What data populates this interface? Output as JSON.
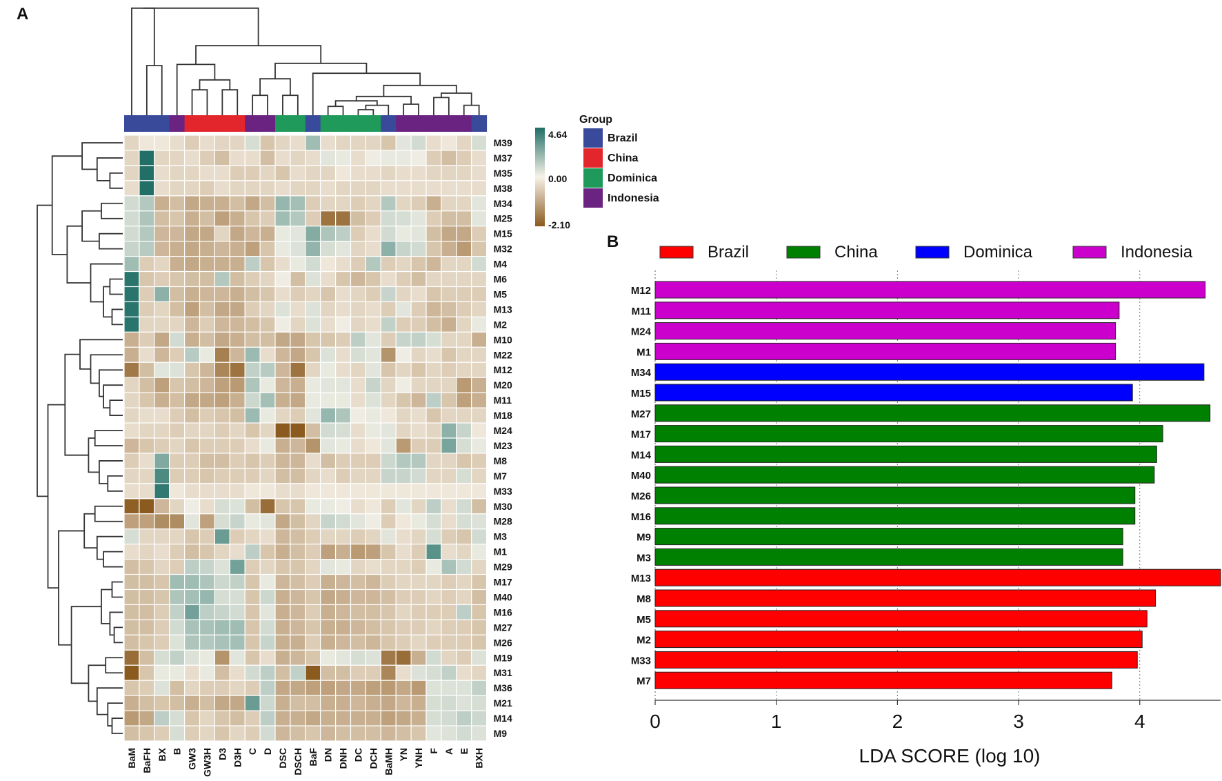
{
  "chart_data": [
    {
      "type": "heatmap",
      "panel_label": "A",
      "columns": [
        "BaM",
        "BaFH",
        "BX",
        "B",
        "GW3",
        "GW3H",
        "D3",
        "D3H",
        "C",
        "D",
        "DSC",
        "DSCH",
        "BaF",
        "DN",
        "DNH",
        "DC",
        "DCH",
        "BaMH",
        "YN",
        "YNH",
        "F",
        "A",
        "E",
        "BXH"
      ],
      "column_groups": [
        "Brazil",
        "Brazil",
        "Brazil",
        "Indonesia",
        "China",
        "China",
        "China",
        "China",
        "Indonesia",
        "Indonesia",
        "Dominica",
        "Dominica",
        "Brazil",
        "Dominica",
        "Dominica",
        "Dominica",
        "Dominica",
        "Brazil",
        "Indonesia",
        "Indonesia",
        "Indonesia",
        "Indonesia",
        "Indonesia",
        "Brazil"
      ],
      "rows": [
        "M39",
        "M37",
        "M35",
        "M38",
        "M34",
        "M25",
        "M15",
        "M32",
        "M4",
        "M6",
        "M5",
        "M13",
        "M2",
        "M10",
        "M22",
        "M12",
        "M20",
        "M11",
        "M18",
        "M24",
        "M23",
        "M8",
        "M7",
        "M33",
        "M30",
        "M28",
        "M3",
        "M1",
        "M29",
        "M17",
        "M40",
        "M16",
        "M27",
        "M26",
        "M19",
        "M31",
        "M36",
        "M21",
        "M14",
        "M9"
      ],
      "colorbar": {
        "max_label": "4.64",
        "mid_label": "0.00",
        "min_label": "-2.10",
        "max": 4.64,
        "mid": 0.0,
        "min": -2.1
      },
      "legend_title": "Group",
      "legend": [
        {
          "name": "Brazil",
          "color": "#3a4a9a"
        },
        {
          "name": "China",
          "color": "#e3262b"
        },
        {
          "name": "Dominica",
          "color": "#1f9a5a"
        },
        {
          "name": "Indonesia",
          "color": "#6a2380"
        }
      ],
      "values": [
        [
          -0.3,
          -0.1,
          -0.1,
          -0.2,
          -0.4,
          -0.2,
          -0.3,
          -0.3,
          0.5,
          -0.5,
          -0.3,
          -0.2,
          1.6,
          -0.2,
          -0.3,
          -0.3,
          -0.3,
          -0.5,
          0.3,
          0.6,
          -0.2,
          -0.1,
          -0.3,
          0.5
        ],
        [
          -0.3,
          4.6,
          -0.3,
          -0.3,
          -0.2,
          -0.4,
          -0.6,
          -0.2,
          -0.2,
          -0.6,
          -0.2,
          -0.3,
          -0.2,
          0.3,
          0.2,
          -0.2,
          0.1,
          0.2,
          0.2,
          0.1,
          -0.4,
          -0.6,
          -0.4,
          -0.2
        ],
        [
          -0.3,
          4.6,
          -0.2,
          -0.3,
          -0.3,
          -0.2,
          -0.2,
          -0.4,
          -0.4,
          -0.3,
          -0.5,
          -0.2,
          -0.3,
          -0.3,
          -0.1,
          -0.2,
          -0.2,
          -0.3,
          -0.2,
          -0.2,
          -0.3,
          -0.3,
          -0.3,
          -0.2
        ],
        [
          -0.2,
          4.6,
          -0.2,
          -0.3,
          -0.3,
          -0.4,
          -0.2,
          -0.3,
          -0.3,
          -0.3,
          -0.2,
          -0.3,
          -0.3,
          -0.2,
          -0.3,
          -0.3,
          -0.3,
          -0.2,
          -0.2,
          -0.2,
          -0.2,
          -0.2,
          -0.2,
          -0.2
        ],
        [
          0.6,
          1.2,
          -0.8,
          -0.6,
          -0.9,
          -0.8,
          -0.8,
          -0.6,
          -0.9,
          -0.6,
          1.8,
          1.5,
          -0.4,
          -0.3,
          -0.3,
          -0.4,
          -0.3,
          1.2,
          -0.3,
          -0.4,
          -0.8,
          -0.3,
          -0.3,
          0.3
        ],
        [
          0.6,
          1.3,
          -0.6,
          -0.5,
          -0.8,
          -0.6,
          -1.0,
          -0.8,
          -0.5,
          -0.4,
          1.6,
          1.2,
          -0.4,
          -1.7,
          -1.7,
          -0.6,
          -0.4,
          0.6,
          0.5,
          0.3,
          -0.4,
          -0.6,
          -0.6,
          0.3
        ],
        [
          0.6,
          1.2,
          -0.7,
          -0.7,
          -0.9,
          -0.9,
          -0.3,
          -0.9,
          -0.7,
          -0.8,
          0.2,
          0.3,
          2.2,
          1.3,
          1.0,
          -0.4,
          -0.2,
          0.6,
          0.2,
          0.3,
          -0.6,
          -0.9,
          -0.9,
          -0.4
        ],
        [
          0.8,
          1.1,
          -0.7,
          -0.8,
          -0.9,
          -0.8,
          -0.7,
          -0.8,
          -1.0,
          -0.5,
          0.2,
          0.4,
          1.9,
          0.5,
          0.3,
          -0.3,
          -0.2,
          2.0,
          0.8,
          0.6,
          -0.5,
          -0.8,
          -1.1,
          -0.5
        ],
        [
          1.6,
          -0.4,
          -0.3,
          -0.8,
          -0.9,
          -0.8,
          -0.8,
          -0.8,
          1.0,
          -0.5,
          -0.2,
          0.2,
          0.6,
          -0.1,
          -0.2,
          -0.4,
          1.2,
          -0.4,
          -0.3,
          -0.5,
          -0.7,
          -0.3,
          -0.3,
          0.6
        ],
        [
          4.4,
          -0.5,
          -0.4,
          -0.5,
          -0.6,
          -0.6,
          1.2,
          -0.6,
          -0.4,
          -0.3,
          0.1,
          -0.6,
          0.4,
          -0.2,
          -0.5,
          -0.7,
          -0.5,
          -0.2,
          -0.4,
          -0.6,
          -0.3,
          -0.3,
          -0.3,
          -0.3
        ],
        [
          4.4,
          -0.4,
          2.0,
          -0.6,
          -0.8,
          -0.7,
          -0.7,
          -0.8,
          -0.6,
          -0.5,
          -0.2,
          -0.4,
          -0.3,
          -0.5,
          -0.2,
          -0.3,
          -0.4,
          0.8,
          -0.3,
          -0.2,
          -0.5,
          -0.4,
          -0.4,
          -0.4
        ],
        [
          4.4,
          -0.4,
          -0.3,
          -0.6,
          -1.0,
          -0.6,
          -0.9,
          -0.9,
          -0.4,
          -0.3,
          0.4,
          -0.2,
          0.4,
          -0.3,
          -0.2,
          -0.3,
          -0.2,
          -0.4,
          0.3,
          -0.4,
          -0.7,
          -0.6,
          -0.4,
          -0.3
        ],
        [
          4.4,
          -0.3,
          -0.3,
          -0.3,
          -0.7,
          -0.4,
          -0.7,
          -0.7,
          -0.6,
          -0.5,
          0.1,
          -0.3,
          0.4,
          -0.2,
          0.1,
          -0.3,
          -0.2,
          0.9,
          -0.4,
          -0.4,
          -0.6,
          -0.8,
          -0.3,
          0.2
        ],
        [
          -0.8,
          -0.4,
          -0.9,
          0.6,
          -0.8,
          -0.6,
          -0.9,
          -0.8,
          -0.6,
          -0.6,
          -0.9,
          -0.9,
          -0.5,
          -0.5,
          -0.4,
          1.0,
          0.3,
          -0.4,
          0.8,
          0.9,
          0.5,
          -0.3,
          -0.3,
          -0.8
        ],
        [
          -0.8,
          -0.2,
          -0.7,
          -0.4,
          1.1,
          0.2,
          -1.5,
          -0.7,
          1.7,
          -0.2,
          -0.7,
          -0.9,
          -0.5,
          0.4,
          -0.2,
          0.5,
          0.3,
          -1.2,
          0.1,
          -0.3,
          -0.2,
          -0.5,
          -0.3,
          -0.3
        ],
        [
          -1.6,
          -0.6,
          0.3,
          0.4,
          -0.5,
          -0.7,
          -1.4,
          -1.7,
          0.9,
          1.1,
          -0.7,
          -1.7,
          -0.3,
          0.2,
          -0.2,
          -0.3,
          0.3,
          -0.5,
          -0.3,
          -0.5,
          -0.3,
          -0.4,
          -0.3,
          -0.3
        ],
        [
          -0.3,
          -0.6,
          -1.0,
          -0.5,
          -0.6,
          -0.7,
          -1.0,
          -1.1,
          1.3,
          0.2,
          -0.7,
          -0.8,
          0.2,
          0.3,
          0.3,
          -0.2,
          0.8,
          -0.3,
          0.1,
          -0.3,
          -0.3,
          -0.3,
          -1.1,
          -0.8
        ],
        [
          -0.3,
          -0.5,
          -0.8,
          -0.6,
          -0.9,
          -0.9,
          -1.0,
          -0.8,
          0.7,
          1.5,
          -0.8,
          -0.9,
          0.2,
          0.2,
          0.2,
          -0.2,
          0.4,
          -0.3,
          -0.5,
          -0.7,
          1.0,
          -0.5,
          -1.0,
          -0.8
        ],
        [
          -0.3,
          -0.2,
          -0.2,
          -0.4,
          -0.6,
          -0.4,
          -0.5,
          -0.6,
          1.7,
          0.2,
          -0.3,
          -0.4,
          0.3,
          1.8,
          1.3,
          0.1,
          0.2,
          -0.1,
          -0.3,
          -0.2,
          -0.5,
          -0.3,
          -0.3,
          -0.3
        ],
        [
          -0.2,
          -0.3,
          -0.3,
          -0.4,
          -0.3,
          -0.3,
          -0.4,
          -0.3,
          -0.5,
          -0.3,
          -2.1,
          -2.1,
          -0.6,
          0.6,
          0.5,
          -0.2,
          0.2,
          0.3,
          -0.3,
          -0.2,
          -0.3,
          2.0,
          0.8,
          -0.1
        ],
        [
          -0.7,
          -0.5,
          -0.4,
          -0.3,
          -0.5,
          -0.4,
          -0.4,
          -0.4,
          -0.2,
          0.2,
          -0.8,
          -0.7,
          -1.2,
          0.3,
          0.2,
          -0.2,
          -0.1,
          0.3,
          -1.1,
          -0.4,
          -0.4,
          2.5,
          0.5,
          0.2
        ],
        [
          -0.4,
          -0.2,
          2.3,
          -0.4,
          -0.4,
          -0.6,
          -0.6,
          -0.4,
          -0.5,
          -0.4,
          -0.7,
          -0.7,
          -0.2,
          -0.6,
          -0.4,
          -0.4,
          -0.4,
          0.7,
          1.2,
          1.2,
          -0.3,
          -0.3,
          -0.5,
          -0.4
        ],
        [
          -0.3,
          -0.3,
          3.5,
          -0.4,
          -0.4,
          -0.5,
          -0.4,
          -0.4,
          -0.4,
          -0.3,
          -0.6,
          -0.6,
          -0.3,
          -0.2,
          -0.4,
          -0.3,
          -0.3,
          0.8,
          0.8,
          0.6,
          -0.3,
          -0.3,
          0.5,
          -0.3
        ],
        [
          -0.2,
          -0.2,
          4.2,
          -0.1,
          -0.2,
          -0.2,
          -0.2,
          -0.2,
          -0.1,
          -0.1,
          -0.2,
          -0.2,
          -0.1,
          -0.1,
          -0.1,
          -0.1,
          -0.1,
          -0.1,
          -0.1,
          -0.1,
          -0.1,
          -0.1,
          -0.1,
          -0.1
        ],
        [
          -2.0,
          -2.1,
          -0.7,
          -0.3,
          0.1,
          -0.2,
          0.5,
          0.4,
          -0.6,
          -1.8,
          -0.5,
          -0.5,
          0.2,
          0.2,
          0.1,
          -0.2,
          -0.1,
          -0.4,
          0.3,
          -0.3,
          1.0,
          -0.2,
          0.6,
          -0.6
        ],
        [
          -1.0,
          -1.0,
          -1.3,
          -1.3,
          0.3,
          -1.0,
          0.5,
          0.8,
          0.2,
          0.3,
          -0.9,
          -0.6,
          -0.3,
          0.8,
          0.6,
          0.3,
          0.1,
          -0.4,
          -0.1,
          0.2,
          0.5,
          -0.2,
          0.5,
          0.4
        ],
        [
          0.5,
          -0.3,
          -0.3,
          -0.3,
          -0.5,
          -0.4,
          2.8,
          -0.4,
          -0.3,
          -0.2,
          -0.7,
          -0.6,
          -0.4,
          -0.3,
          -0.3,
          -0.4,
          -0.3,
          0.3,
          -0.2,
          -0.3,
          0.5,
          -0.4,
          -0.5,
          0.6
        ],
        [
          -0.2,
          -0.3,
          -0.2,
          -0.4,
          -0.6,
          -0.5,
          -0.3,
          -0.2,
          1.0,
          -0.5,
          -0.8,
          -0.6,
          -0.4,
          -1.0,
          -0.8,
          -1.1,
          -1.0,
          -0.5,
          -0.2,
          -0.4,
          3.2,
          -0.2,
          -0.3,
          0.2
        ],
        [
          -0.6,
          -0.5,
          -0.3,
          -0.4,
          1.0,
          0.8,
          0.4,
          2.6,
          -0.4,
          -0.3,
          -0.5,
          -0.5,
          -0.3,
          0.3,
          0.2,
          -0.3,
          -0.2,
          -0.3,
          -0.3,
          -0.4,
          0.2,
          1.4,
          0.6,
          -0.3
        ],
        [
          -0.6,
          -0.6,
          -0.5,
          1.6,
          1.6,
          1.3,
          0.7,
          0.9,
          -0.5,
          0.2,
          -0.7,
          -0.6,
          -0.4,
          -0.8,
          -0.7,
          -0.6,
          -0.7,
          -0.4,
          -0.3,
          -0.3,
          -0.3,
          -0.4,
          -0.3,
          -0.5
        ],
        [
          -0.6,
          -0.6,
          -0.5,
          1.3,
          1.5,
          1.8,
          0.5,
          0.5,
          -0.5,
          0.7,
          -0.8,
          -0.7,
          -0.5,
          -0.9,
          -0.8,
          -0.7,
          -0.7,
          -0.6,
          -0.4,
          -0.4,
          -0.3,
          -0.4,
          -0.3,
          -0.6
        ],
        [
          -0.6,
          -0.6,
          -0.4,
          0.9,
          2.6,
          1.0,
          0.8,
          0.6,
          -0.5,
          0.3,
          -0.8,
          -0.7,
          -0.4,
          -0.8,
          -0.7,
          -0.6,
          -0.6,
          -0.5,
          -0.3,
          -0.4,
          -0.4,
          -0.4,
          1.0,
          -0.5
        ],
        [
          -0.6,
          -0.6,
          -0.4,
          0.6,
          1.4,
          1.4,
          1.6,
          1.6,
          -0.5,
          0.6,
          -0.8,
          -0.7,
          -0.5,
          -0.8,
          -0.8,
          -0.7,
          -0.6,
          -0.5,
          -0.4,
          -0.4,
          -0.3,
          -0.4,
          -0.4,
          -0.5
        ],
        [
          -0.6,
          -0.5,
          -0.4,
          0.4,
          1.3,
          1.2,
          1.4,
          1.5,
          -0.5,
          0.8,
          -0.8,
          -0.8,
          -0.4,
          -0.8,
          -0.7,
          -0.6,
          -0.7,
          -0.5,
          -0.4,
          -0.3,
          -0.4,
          -0.4,
          -0.4,
          -0.5
        ],
        [
          -1.8,
          -0.6,
          0.5,
          0.9,
          0.4,
          0.2,
          -1.2,
          0.3,
          -0.5,
          -0.2,
          -0.8,
          -0.7,
          -0.5,
          0.2,
          0.3,
          0.5,
          0.4,
          -1.6,
          -1.8,
          -0.8,
          0.6,
          -0.3,
          -0.4,
          0.4
        ],
        [
          -2.1,
          -0.5,
          0.2,
          0.2,
          -0.2,
          0.2,
          -0.6,
          -0.2,
          0.6,
          1.0,
          -0.6,
          0.9,
          -2.1,
          -0.6,
          -0.6,
          -0.4,
          -0.4,
          -1.4,
          -0.2,
          0.4,
          0.5,
          0.9,
          -0.2,
          -0.3
        ],
        [
          -0.5,
          -0.4,
          0.4,
          -0.6,
          -0.3,
          -0.4,
          -0.4,
          -0.3,
          -0.4,
          1.0,
          -0.9,
          -0.9,
          -1.0,
          -1.0,
          -0.9,
          -0.9,
          -1.0,
          -1.1,
          -0.9,
          -1.1,
          0.4,
          0.4,
          0.4,
          0.9
        ],
        [
          -0.8,
          -0.6,
          -0.5,
          -0.6,
          -0.8,
          -0.6,
          -0.9,
          -0.9,
          2.8,
          0.7,
          -0.8,
          -0.6,
          -0.6,
          -0.8,
          -0.8,
          -0.7,
          -0.8,
          -0.9,
          -0.7,
          -0.8,
          0.5,
          0.6,
          0.4,
          0.5
        ],
        [
          -1.1,
          -0.9,
          1.0,
          0.5,
          -0.5,
          -0.3,
          -0.5,
          -0.6,
          -0.4,
          1.0,
          -0.8,
          -0.8,
          -0.9,
          -0.8,
          -0.8,
          -0.8,
          -0.8,
          -1.0,
          -0.9,
          -0.8,
          0.5,
          0.6,
          1.0,
          0.7
        ],
        [
          -0.6,
          -0.5,
          -0.4,
          0.5,
          -0.4,
          -0.3,
          -0.5,
          -0.3,
          -0.4,
          0.6,
          -0.7,
          -0.6,
          -0.5,
          -0.7,
          -0.6,
          -0.6,
          -0.6,
          -0.7,
          -0.6,
          -0.5,
          0.3,
          0.4,
          0.6,
          0.4
        ]
      ]
    },
    {
      "type": "bar",
      "orientation": "horizontal",
      "panel_label": "B",
      "categories": [
        "M12",
        "M11",
        "M24",
        "M1",
        "M34",
        "M15",
        "M27",
        "M17",
        "M14",
        "M40",
        "M26",
        "M16",
        "M9",
        "M3",
        "M13",
        "M8",
        "M5",
        "M2",
        "M33",
        "M7"
      ],
      "groups": [
        "Indonesia",
        "Indonesia",
        "Indonesia",
        "Indonesia",
        "Dominica",
        "Dominica",
        "China",
        "China",
        "China",
        "China",
        "China",
        "China",
        "China",
        "China",
        "Brazil",
        "Brazil",
        "Brazil",
        "Brazil",
        "Brazil",
        "Brazil"
      ],
      "values": [
        4.54,
        3.83,
        3.8,
        3.8,
        4.53,
        3.94,
        4.58,
        4.19,
        4.14,
        4.12,
        3.96,
        3.96,
        3.86,
        3.86,
        4.73,
        4.13,
        4.06,
        4.02,
        3.98,
        3.77
      ],
      "legend": [
        {
          "name": "Brazil",
          "color": "#ff0000"
        },
        {
          "name": "China",
          "color": "#008000"
        },
        {
          "name": "Dominica",
          "color": "#0000ff"
        },
        {
          "name": "Indonesia",
          "color": "#cc00cc"
        }
      ],
      "xlabel": "LDA SCORE (log 10)",
      "xticks": [
        "0",
        "1",
        "2",
        "3",
        "4"
      ],
      "xlim": [
        0,
        4.73
      ],
      "ylabel": ""
    }
  ]
}
